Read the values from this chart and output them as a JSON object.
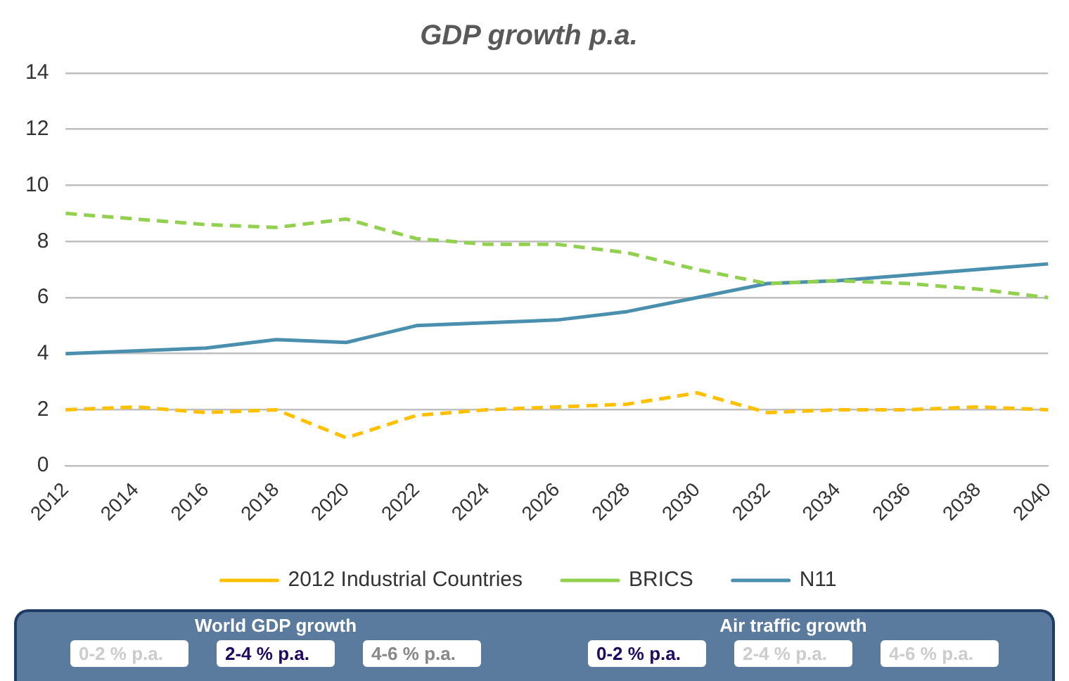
{
  "chart_data": {
    "type": "line",
    "title": "GDP growth p.a.",
    "categories": [
      "2012",
      "2014",
      "2016",
      "2018",
      "2020",
      "2022",
      "2024",
      "2026",
      "2028",
      "2030",
      "2032",
      "2034",
      "2036",
      "2038",
      "2040"
    ],
    "series": [
      {
        "name": "2012 Industrial Countries",
        "color": "#ffc000",
        "line_style": "dashed",
        "values": [
          2.0,
          2.1,
          1.9,
          2.0,
          1.0,
          1.8,
          2.0,
          2.1,
          2.2,
          2.6,
          1.9,
          2.0,
          2.0,
          2.1,
          2.0
        ]
      },
      {
        "name": "BRICS",
        "color": "#92d050",
        "line_style": "dashed",
        "values": [
          9.0,
          8.8,
          8.6,
          8.5,
          8.8,
          8.1,
          7.9,
          7.9,
          7.6,
          7.0,
          6.5,
          6.6,
          6.5,
          6.3,
          6.0
        ]
      },
      {
        "name": "N11",
        "color": "#4a8fad",
        "line_style": "solid",
        "values": [
          4.0,
          4.1,
          4.2,
          4.5,
          4.4,
          5.0,
          5.1,
          5.2,
          5.5,
          6.0,
          6.5,
          6.6,
          6.8,
          7.0,
          7.2
        ]
      }
    ],
    "ylim": [
      0,
      14
    ],
    "yticks": [
      0,
      2,
      4,
      6,
      8,
      10,
      12,
      14
    ],
    "grid": "y",
    "legend": "bottom",
    "marker": "none",
    "annotations": [
      "World GDP growth",
      "0-2 % p.a.",
      "2-4 % p.a.",
      "4-6 % p.a.",
      "Air traffic growth",
      "0-2 % p.a.",
      "2-4 % p.a.",
      "4-6 % p.a."
    ]
  }
}
